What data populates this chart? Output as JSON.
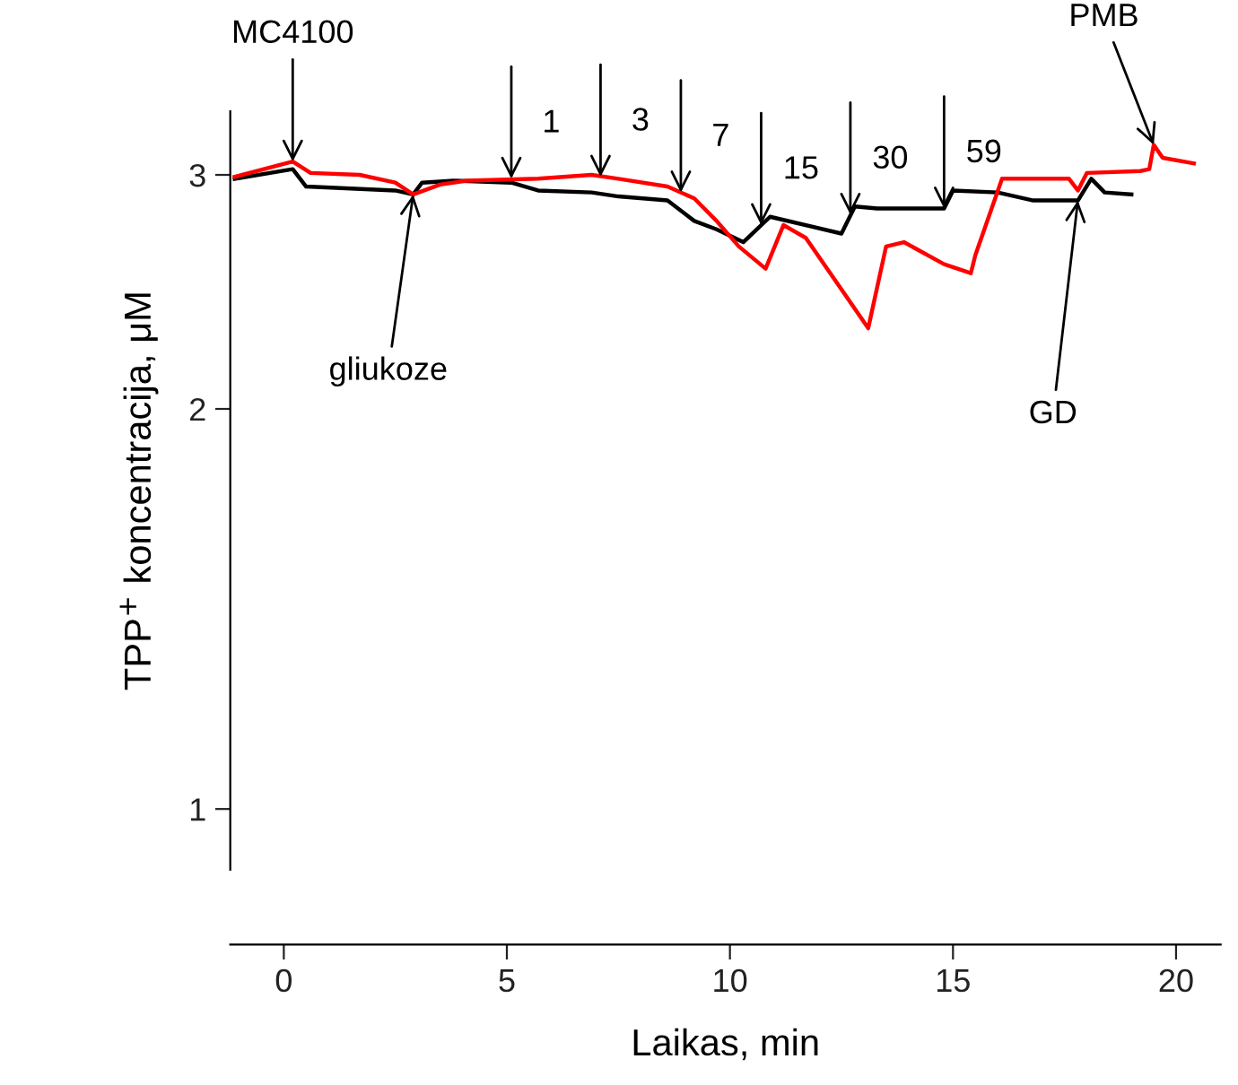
{
  "chart_data": {
    "type": "line",
    "xlabel": "Laikas, min",
    "ylabel": "TPP$^{+}$ koncentracija, μM",
    "xlim": [
      -1.2,
      21.0
    ],
    "xticks": [
      0,
      5,
      10,
      15,
      20
    ],
    "ylim": [
      0.9,
      3.35
    ],
    "yticks": [
      1,
      2,
      3
    ],
    "log": true,
    "grid": false,
    "legend": false,
    "marker": "none",
    "line_style": "solid",
    "series": [
      {
        "color": "#000000",
        "x": [
          -1.1,
          0.2,
          0.5,
          2.5,
          2.9,
          3.1,
          3.8,
          5.1,
          5.7,
          6.9,
          7.5,
          8.6,
          9.2,
          9.7,
          10.3,
          10.9,
          12.5,
          12.8,
          13.3,
          14.8,
          15.0,
          16.0,
          16.8,
          17.8,
          18.1,
          18.4,
          19.0
        ],
        "values": [
          2.98,
          3.03,
          2.94,
          2.92,
          2.9,
          2.96,
          2.97,
          2.96,
          2.92,
          2.91,
          2.89,
          2.87,
          2.77,
          2.73,
          2.67,
          2.79,
          2.71,
          2.84,
          2.83,
          2.83,
          2.92,
          2.91,
          2.87,
          2.87,
          2.98,
          2.91,
          2.9
        ]
      },
      {
        "color": "#ff0000",
        "x": [
          -1.1,
          0.2,
          0.6,
          1.7,
          2.5,
          2.9,
          3.5,
          4.1,
          5.7,
          6.9,
          7.5,
          8.6,
          9.2,
          9.7,
          10.2,
          10.8,
          11.2,
          11.7,
          12.5,
          13.1,
          13.5,
          13.9,
          14.8,
          15.4,
          15.5,
          16.1,
          17.6,
          17.8,
          18.0,
          19.2,
          19.4,
          19.5,
          19.7,
          20.4
        ],
        "values": [
          2.99,
          3.07,
          3.01,
          3.0,
          2.96,
          2.9,
          2.95,
          2.97,
          2.98,
          3.0,
          2.98,
          2.94,
          2.88,
          2.77,
          2.65,
          2.55,
          2.75,
          2.69,
          2.46,
          2.3,
          2.65,
          2.67,
          2.57,
          2.53,
          2.61,
          2.98,
          2.98,
          2.92,
          3.01,
          3.02,
          3.03,
          3.16,
          3.09,
          3.06
        ]
      }
    ],
    "annotations": [
      {
        "text": "MC4100",
        "x": 0.2,
        "y": 3.07
      },
      {
        "text": "gliukoze",
        "x": 2.9,
        "y": 2.9
      },
      {
        "text": "1",
        "x": 5.1,
        "y": 2.98
      },
      {
        "text": "3",
        "x": 7.1,
        "y": 2.99
      },
      {
        "text": "7",
        "x": 8.9,
        "y": 2.91
      },
      {
        "text": "15",
        "x": 10.7,
        "y": 2.75
      },
      {
        "text": "30",
        "x": 12.7,
        "y": 2.8
      },
      {
        "text": "59",
        "x": 14.8,
        "y": 2.83
      },
      {
        "text": "GD",
        "x": 17.8,
        "y": 2.87
      },
      {
        "text": "PMB",
        "x": 19.5,
        "y": 3.16
      }
    ]
  }
}
